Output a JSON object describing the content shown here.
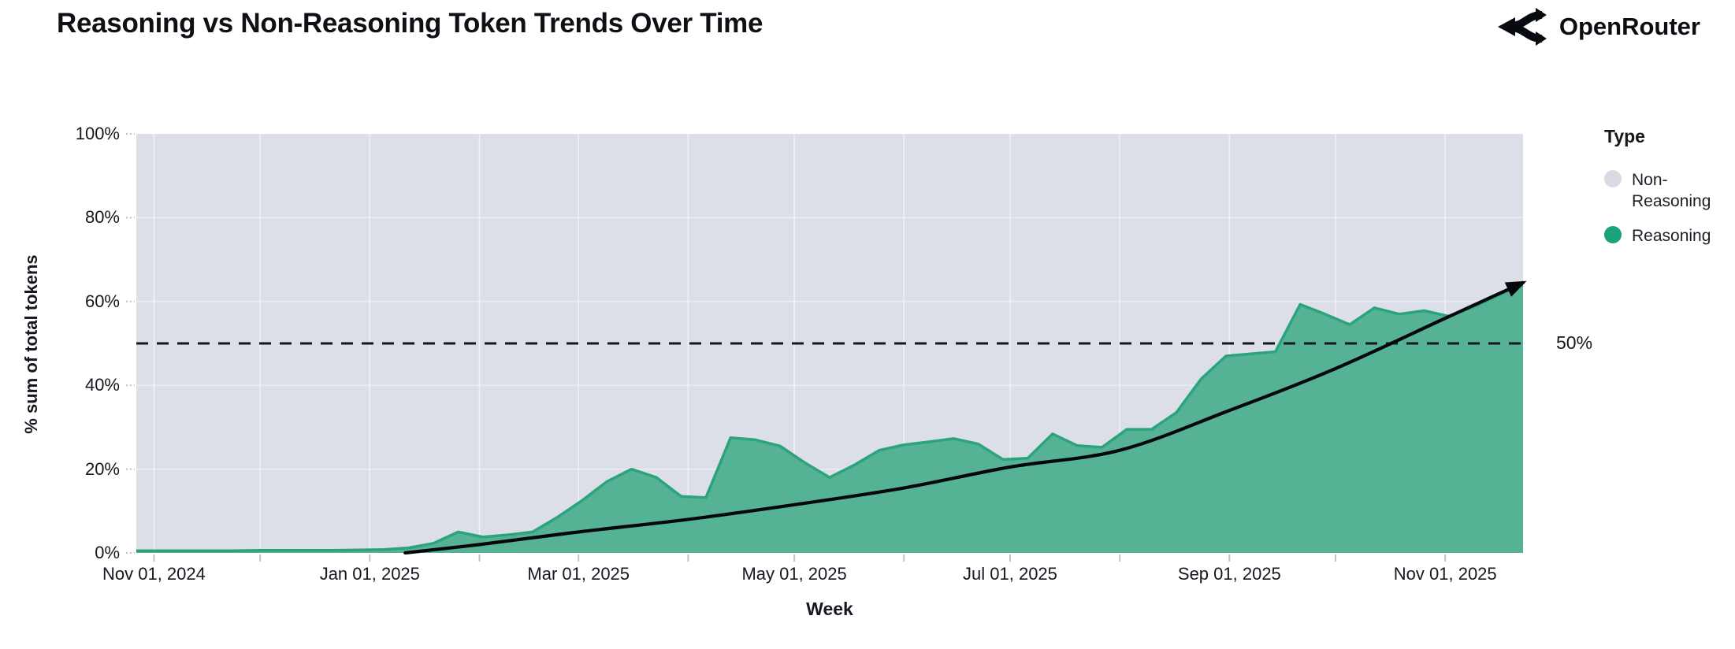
{
  "header": {
    "title": "Reasoning vs Non-Reasoning Token Trends Over Time",
    "logo_text": "OpenRouter"
  },
  "chart_data": {
    "type": "area",
    "stacking": "percent",
    "title": "Reasoning vs Non-Reasoning Token Trends Over Time",
    "xlabel": "Week",
    "ylabel": "% sum of total tokens",
    "ylim": [
      0,
      100
    ],
    "y_ticks": [
      {
        "value": 0,
        "label": "0%"
      },
      {
        "value": 20,
        "label": "20%"
      },
      {
        "value": 40,
        "label": "40%"
      },
      {
        "value": 60,
        "label": "60%"
      },
      {
        "value": 80,
        "label": "80%"
      },
      {
        "value": 100,
        "label": "100%"
      }
    ],
    "x_axis_start": "2024-10-27",
    "x_axis_end": "2025-11-23",
    "x_labeled_ticks": [
      {
        "date": "2024-11-01",
        "label": "Nov 01, 2024"
      },
      {
        "date": "2025-01-01",
        "label": "Jan 01, 2025"
      },
      {
        "date": "2025-03-01",
        "label": "Mar 01, 2025"
      },
      {
        "date": "2025-05-01",
        "label": "May 01, 2025"
      },
      {
        "date": "2025-07-01",
        "label": "Jul 01, 2025"
      },
      {
        "date": "2025-09-01",
        "label": "Sep 01, 2025"
      },
      {
        "date": "2025-11-01",
        "label": "Nov 01, 2025"
      }
    ],
    "x_gridline_dates": [
      "2024-11-01",
      "2024-12-01",
      "2025-01-01",
      "2025-02-01",
      "2025-03-01",
      "2025-04-01",
      "2025-05-01",
      "2025-06-01",
      "2025-07-01",
      "2025-08-01",
      "2025-09-01",
      "2025-10-01",
      "2025-11-01"
    ],
    "legend": {
      "title": "Type",
      "position": "right",
      "items": [
        {
          "label": "Non-Reasoning",
          "color": "#d8dbe3"
        },
        {
          "label": "Reasoning",
          "color": "#1aa37a"
        }
      ]
    },
    "reference_line": {
      "value": 50,
      "label": "50%",
      "style": "dashed"
    },
    "series": [
      {
        "name": "Reasoning",
        "unit": "% of total tokens per week",
        "weeks": [
          [
            "2024-10-27",
            0.5
          ],
          [
            "2024-11-03",
            0.5
          ],
          [
            "2024-11-10",
            0.5
          ],
          [
            "2024-11-17",
            0.5
          ],
          [
            "2024-11-24",
            0.5
          ],
          [
            "2024-12-01",
            0.6
          ],
          [
            "2024-12-08",
            0.6
          ],
          [
            "2024-12-15",
            0.6
          ],
          [
            "2024-12-22",
            0.6
          ],
          [
            "2024-12-29",
            0.7
          ],
          [
            "2025-01-05",
            0.8
          ],
          [
            "2025-01-12",
            1.2
          ],
          [
            "2025-01-19",
            2.3
          ],
          [
            "2025-01-26",
            5.0
          ],
          [
            "2025-02-02",
            3.8
          ],
          [
            "2025-02-09",
            4.3
          ],
          [
            "2025-02-16",
            5.0
          ],
          [
            "2025-02-23",
            8.5
          ],
          [
            "2025-03-02",
            12.5
          ],
          [
            "2025-03-09",
            17.0
          ],
          [
            "2025-03-16",
            20.0
          ],
          [
            "2025-03-23",
            18.0
          ],
          [
            "2025-03-30",
            13.5
          ],
          [
            "2025-04-06",
            13.2
          ],
          [
            "2025-04-13",
            27.5
          ],
          [
            "2025-04-20",
            27.0
          ],
          [
            "2025-04-27",
            25.5
          ],
          [
            "2025-05-04",
            21.5
          ],
          [
            "2025-05-11",
            18.0
          ],
          [
            "2025-05-18",
            21.0
          ],
          [
            "2025-05-25",
            24.5
          ],
          [
            "2025-06-01",
            25.8
          ],
          [
            "2025-06-08",
            26.5
          ],
          [
            "2025-06-15",
            27.3
          ],
          [
            "2025-06-22",
            26.0
          ],
          [
            "2025-06-29",
            22.3
          ],
          [
            "2025-07-06",
            22.6
          ],
          [
            "2025-07-13",
            28.4
          ],
          [
            "2025-07-20",
            25.6
          ],
          [
            "2025-07-27",
            25.2
          ],
          [
            "2025-08-03",
            29.5
          ],
          [
            "2025-08-10",
            29.5
          ],
          [
            "2025-08-17",
            33.5
          ],
          [
            "2025-08-24",
            41.5
          ],
          [
            "2025-08-31",
            47.0
          ],
          [
            "2025-09-07",
            47.5
          ],
          [
            "2025-09-14",
            48.0
          ],
          [
            "2025-09-21",
            59.3
          ],
          [
            "2025-09-28",
            57.0
          ],
          [
            "2025-10-05",
            54.5
          ],
          [
            "2025-10-12",
            58.5
          ],
          [
            "2025-10-19",
            57.0
          ],
          [
            "2025-10-26",
            57.8
          ],
          [
            "2025-11-02",
            56.5
          ],
          [
            "2025-11-09",
            58.7
          ],
          [
            "2025-11-16",
            61.5
          ],
          [
            "2025-11-23",
            64.0
          ]
        ]
      },
      {
        "name": "Non-Reasoning",
        "note": "complement of Reasoning; stacked to 100%",
        "derived": "100 - Reasoning"
      }
    ],
    "trend_arrow": {
      "description": "black curved arrow showing exponential growth of reasoning share",
      "points": [
        [
          "2025-01-11",
          0
        ],
        [
          "2025-02-01",
          2
        ],
        [
          "2025-03-01",
          5
        ],
        [
          "2025-04-01",
          8
        ],
        [
          "2025-05-01",
          11.5
        ],
        [
          "2025-06-01",
          15.5
        ],
        [
          "2025-07-01",
          20.5
        ],
        [
          "2025-08-01",
          24.5
        ],
        [
          "2025-09-01",
          34
        ],
        [
          "2025-10-01",
          44
        ],
        [
          "2025-11-01",
          56
        ],
        [
          "2025-11-23",
          64.5
        ]
      ]
    },
    "layout": {
      "grid": true,
      "plot_bg": "#dcdfe8"
    }
  },
  "colors": {
    "plot_background": "#dcdfe8",
    "gridline": "rgba(255,255,255,0.55)",
    "area_fill": "#55b294",
    "area_stroke": "#2ba47e",
    "non_reasoning": "#d8dbe3",
    "reasoning_legend": "#1aa37a",
    "reference_line": "#14171e",
    "trend_line": "#05070b",
    "tick": "#bfc3cc",
    "text_dark": "#15181e"
  },
  "ref_label": "50%"
}
